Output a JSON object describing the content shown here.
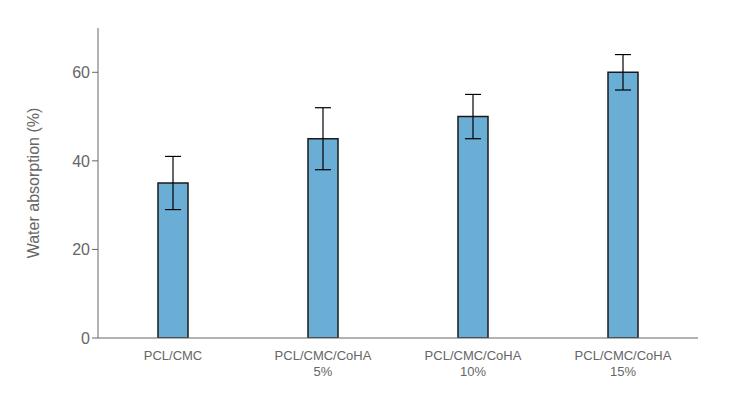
{
  "chart_data": {
    "type": "bar",
    "categories": [
      "PCL/CMC",
      "PCL/CMC/CoHA\n5%",
      "PCL/CMC/CoHA\n10%",
      "PCL/CMC/CoHA\n15%"
    ],
    "values": [
      35,
      45,
      50,
      60
    ],
    "errors": [
      6,
      7,
      5,
      4
    ],
    "color": "#6aaed6",
    "ylabel": "Water absorption (%)",
    "ylim": [
      0,
      70
    ],
    "yticks": [
      0,
      20,
      40,
      60
    ],
    "grid": false
  }
}
